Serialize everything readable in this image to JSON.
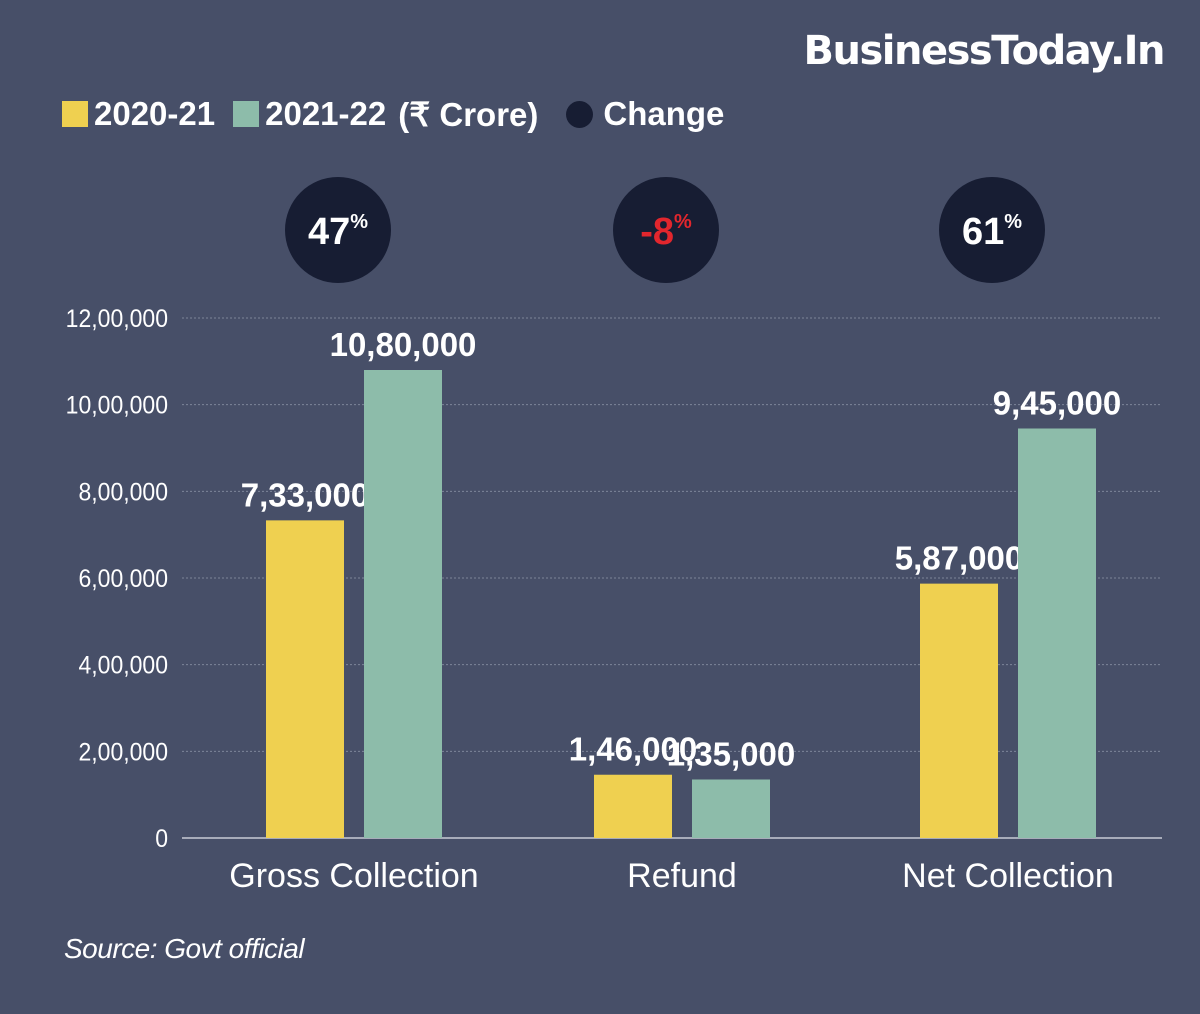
{
  "brand": "BusinessToday.In",
  "legend": {
    "items": [
      {
        "label": "2020-21",
        "color": "#efd050"
      },
      {
        "label": "2021-22",
        "color": "#8dbcaa"
      }
    ],
    "unit": "(₹ Crore)",
    "change_label": "Change",
    "change_color": "#171d33"
  },
  "source": "Source: Govt official",
  "chart_data": {
    "type": "bar",
    "categories": [
      "Gross Collection",
      "Refund",
      "Net Collection"
    ],
    "series": [
      {
        "name": "2020-21",
        "values": [
          733000,
          146000,
          587000
        ],
        "labels": [
          "7,33,000",
          "1,46,000",
          "5,87,000"
        ],
        "color": "#efd050"
      },
      {
        "name": "2021-22",
        "values": [
          1080000,
          135000,
          945000
        ],
        "labels": [
          "10,80,000",
          "1,35,000",
          "9,45,000"
        ],
        "color": "#8dbcaa"
      }
    ],
    "changes": [
      {
        "value": "47",
        "suffix": "%",
        "negative": false
      },
      {
        "value": "-8",
        "suffix": "%",
        "negative": true
      },
      {
        "value": "61",
        "suffix": "%",
        "negative": false
      }
    ],
    "yticks": [
      {
        "value": 0,
        "label": "0"
      },
      {
        "value": 200000,
        "label": "2,00,000"
      },
      {
        "value": 400000,
        "label": "4,00,000"
      },
      {
        "value": 600000,
        "label": "6,00,000"
      },
      {
        "value": 800000,
        "label": "8,00,000"
      },
      {
        "value": 1000000,
        "label": "10,00,000"
      },
      {
        "value": 1200000,
        "label": "12,00,000"
      }
    ],
    "ylim": [
      0,
      1200000
    ],
    "grid": true,
    "legend_position": "top-left",
    "negative_color": "#e2262d",
    "bubble_color": "#171d33",
    "grid_color": "#7d8599"
  }
}
